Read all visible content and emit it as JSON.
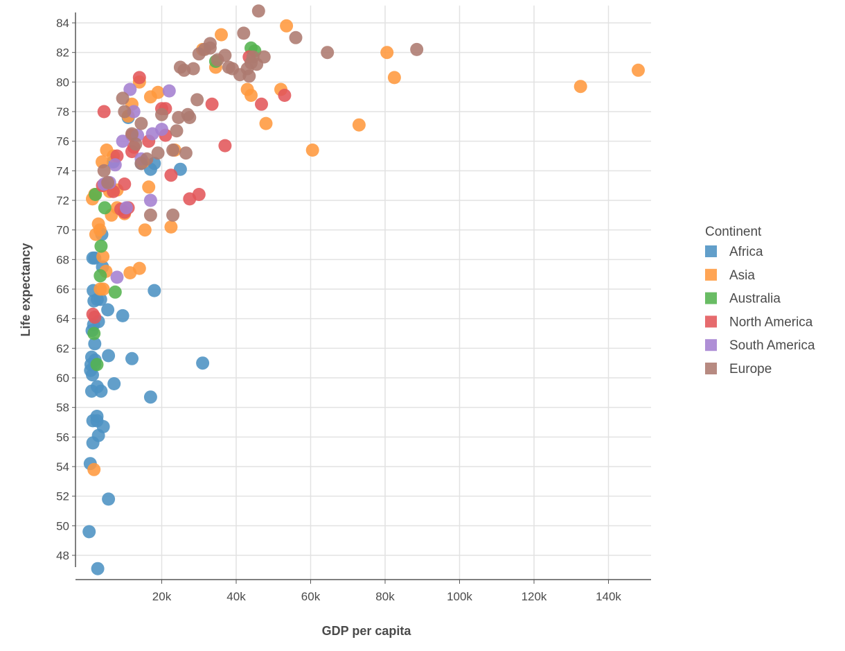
{
  "chart_data": {
    "type": "scatter",
    "xlabel": "GDP per capita",
    "ylabel": "Life expectancy",
    "xlim": [
      0,
      150000
    ],
    "ylim": [
      47,
      85
    ],
    "x_ticks": [
      20000,
      40000,
      60000,
      80000,
      100000,
      120000,
      140000
    ],
    "x_tick_labels": [
      "20k",
      "40k",
      "60k",
      "80k",
      "100k",
      "120k",
      "140k"
    ],
    "y_ticks": [
      48,
      50,
      52,
      54,
      56,
      58,
      60,
      62,
      64,
      66,
      68,
      70,
      72,
      74,
      76,
      78,
      80,
      82,
      84
    ],
    "grid": true,
    "legend": {
      "title": "Continent",
      "position": "right"
    },
    "series": [
      {
        "name": "Africa",
        "color": "#4c92c3",
        "points": [
          [
            500,
            49.6
          ],
          [
            800,
            54.2
          ],
          [
            1500,
            55.6
          ],
          [
            3000,
            56.1
          ],
          [
            4300,
            56.7
          ],
          [
            1500,
            57.1
          ],
          [
            2600,
            57.1
          ],
          [
            2600,
            57.4
          ],
          [
            1200,
            59.1
          ],
          [
            3700,
            59.1
          ],
          [
            2700,
            59.4
          ],
          [
            7200,
            59.6
          ],
          [
            900,
            60.5
          ],
          [
            1400,
            60.2
          ],
          [
            1000,
            60.9
          ],
          [
            2000,
            60.9
          ],
          [
            1200,
            61.4
          ],
          [
            2100,
            61.2
          ],
          [
            5700,
            61.5
          ],
          [
            12000,
            61.3
          ],
          [
            31000,
            61.0
          ],
          [
            2000,
            62.3
          ],
          [
            1300,
            63.2
          ],
          [
            3000,
            63.8
          ],
          [
            1700,
            63.6
          ],
          [
            5500,
            64.6
          ],
          [
            9500,
            64.2
          ],
          [
            1800,
            65.2
          ],
          [
            2700,
            65.3
          ],
          [
            3600,
            65.3
          ],
          [
            18000,
            65.9
          ],
          [
            1600,
            65.9
          ],
          [
            4100,
            67.5
          ],
          [
            1500,
            68.1
          ],
          [
            2000,
            68.1
          ],
          [
            3900,
            69.7
          ],
          [
            17000,
            58.7
          ],
          [
            5700,
            51.8
          ],
          [
            2800,
            47.1
          ],
          [
            11000,
            77.6
          ],
          [
            7000,
            74.6
          ],
          [
            14500,
            74.5
          ],
          [
            17000,
            74.1
          ],
          [
            25000,
            74.1
          ],
          [
            18000,
            74.5
          ]
        ]
      },
      {
        "name": "Asia",
        "color": "#ff993e",
        "points": [
          [
            1800,
            53.8
          ],
          [
            11500,
            67.1
          ],
          [
            14000,
            67.4
          ],
          [
            3500,
            66.0
          ],
          [
            4300,
            66.0
          ],
          [
            5000,
            67.2
          ],
          [
            4200,
            68.2
          ],
          [
            2300,
            69.7
          ],
          [
            3000,
            70.4
          ],
          [
            3400,
            70.0
          ],
          [
            15500,
            70.0
          ],
          [
            22500,
            70.2
          ],
          [
            6500,
            71.0
          ],
          [
            8000,
            71.5
          ],
          [
            1400,
            72.1
          ],
          [
            2000,
            72.4
          ],
          [
            6000,
            72.6
          ],
          [
            8000,
            72.7
          ],
          [
            16500,
            72.9
          ],
          [
            4700,
            73.0
          ],
          [
            10000,
            71.1
          ],
          [
            4000,
            74.6
          ],
          [
            7000,
            75.0
          ],
          [
            5200,
            75.4
          ],
          [
            11000,
            77.7
          ],
          [
            12000,
            78.5
          ],
          [
            14000,
            80.0
          ],
          [
            17000,
            79.0
          ],
          [
            19000,
            79.3
          ],
          [
            23500,
            75.4
          ],
          [
            15000,
            74.6
          ],
          [
            43000,
            79.5
          ],
          [
            44000,
            79.1
          ],
          [
            52000,
            79.5
          ],
          [
            48000,
            77.2
          ],
          [
            60500,
            75.4
          ],
          [
            73000,
            77.1
          ],
          [
            80500,
            82.0
          ],
          [
            82500,
            80.3
          ],
          [
            132500,
            79.7
          ],
          [
            148000,
            80.8
          ],
          [
            53500,
            83.8
          ],
          [
            36000,
            83.2
          ],
          [
            31000,
            82.2
          ],
          [
            34500,
            81.0
          ]
        ]
      },
      {
        "name": "Australia",
        "color": "#54b34f",
        "points": [
          [
            1800,
            63.0
          ],
          [
            2600,
            60.9
          ],
          [
            3500,
            66.9
          ],
          [
            3700,
            68.9
          ],
          [
            7500,
            65.8
          ],
          [
            4700,
            71.5
          ],
          [
            2200,
            72.4
          ],
          [
            34500,
            81.4
          ],
          [
            44000,
            82.3
          ],
          [
            45000,
            82.1
          ]
        ]
      },
      {
        "name": "North America",
        "color": "#e3565a",
        "points": [
          [
            1500,
            64.3
          ],
          [
            2000,
            64.1
          ],
          [
            4100,
            73.0
          ],
          [
            4500,
            78.0
          ],
          [
            7000,
            72.6
          ],
          [
            9000,
            71.4
          ],
          [
            10000,
            71.2
          ],
          [
            11000,
            71.5
          ],
          [
            8000,
            75.0
          ],
          [
            10000,
            73.1
          ],
          [
            12000,
            75.3
          ],
          [
            12500,
            75.6
          ],
          [
            12000,
            76.4
          ],
          [
            14000,
            80.3
          ],
          [
            16500,
            76.0
          ],
          [
            20000,
            78.2
          ],
          [
            21000,
            78.2
          ],
          [
            21000,
            76.4
          ],
          [
            22500,
            73.7
          ],
          [
            27500,
            72.1
          ],
          [
            30000,
            72.4
          ],
          [
            33500,
            78.5
          ],
          [
            37000,
            75.7
          ],
          [
            43500,
            81.7
          ],
          [
            46800,
            78.5
          ],
          [
            53000,
            79.1
          ]
        ]
      },
      {
        "name": "South America",
        "color": "#a47fd0",
        "points": [
          [
            4500,
            73.1
          ],
          [
            6000,
            73.2
          ],
          [
            7500,
            74.4
          ],
          [
            9500,
            76.0
          ],
          [
            11500,
            79.5
          ],
          [
            12500,
            78.0
          ],
          [
            13500,
            76.4
          ],
          [
            14500,
            74.8
          ],
          [
            17000,
            72.0
          ],
          [
            17500,
            76.5
          ],
          [
            20000,
            76.8
          ],
          [
            22000,
            79.4
          ],
          [
            10500,
            71.5
          ],
          [
            8000,
            66.8
          ]
        ]
      },
      {
        "name": "Europe",
        "color": "#ad7a70",
        "points": [
          [
            4500,
            74.0
          ],
          [
            5500,
            73.2
          ],
          [
            9500,
            78.9
          ],
          [
            10000,
            78.0
          ],
          [
            12000,
            76.5
          ],
          [
            14500,
            77.2
          ],
          [
            14500,
            74.5
          ],
          [
            16000,
            74.8
          ],
          [
            17000,
            71.0
          ],
          [
            19000,
            75.2
          ],
          [
            20000,
            77.8
          ],
          [
            23000,
            71.0
          ],
          [
            23000,
            75.4
          ],
          [
            24000,
            76.7
          ],
          [
            24500,
            77.6
          ],
          [
            26000,
            80.8
          ],
          [
            25000,
            81.0
          ],
          [
            26500,
            75.2
          ],
          [
            27000,
            77.8
          ],
          [
            27500,
            77.6
          ],
          [
            28500,
            80.9
          ],
          [
            29500,
            78.8
          ],
          [
            30000,
            81.9
          ],
          [
            31500,
            82.2
          ],
          [
            33000,
            82.3
          ],
          [
            33000,
            82.6
          ],
          [
            35000,
            81.5
          ],
          [
            37000,
            81.8
          ],
          [
            38000,
            81.0
          ],
          [
            39000,
            80.9
          ],
          [
            41000,
            80.5
          ],
          [
            42000,
            83.3
          ],
          [
            43000,
            80.9
          ],
          [
            43500,
            80.4
          ],
          [
            44000,
            81.3
          ],
          [
            44500,
            81.7
          ],
          [
            45500,
            81.2
          ],
          [
            46000,
            84.8
          ],
          [
            47500,
            81.7
          ],
          [
            56000,
            83.0
          ],
          [
            64500,
            82.0
          ],
          [
            88500,
            82.2
          ],
          [
            13000,
            75.8
          ]
        ]
      }
    ]
  }
}
